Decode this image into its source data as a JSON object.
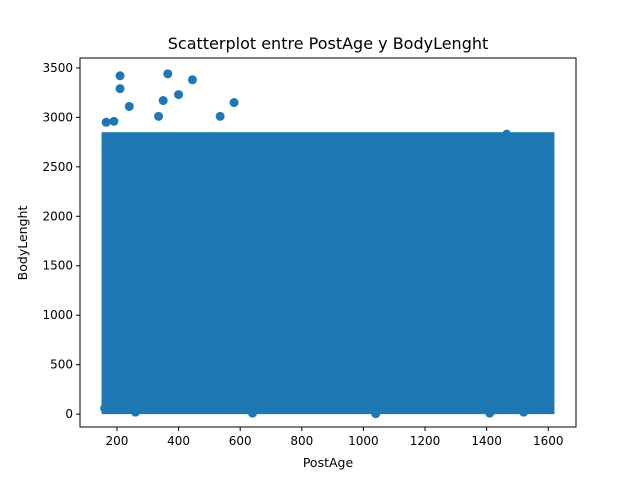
{
  "chart_data": {
    "type": "scatter",
    "title": "Scatterplot entre PostAge y BodyLenght",
    "xlabel": "PostAge",
    "ylabel": "BodyLenght",
    "xlim": [
      80,
      1690
    ],
    "ylim": [
      -130,
      3600
    ],
    "xticks": [
      200,
      400,
      600,
      800,
      1000,
      1200,
      1400,
      1600
    ],
    "yticks": [
      0,
      500,
      1000,
      1500,
      2000,
      2500,
      3000,
      3500
    ],
    "grid": false,
    "legend": "none",
    "marker_color": "#1f77b4",
    "dense_region": {
      "x_range": [
        150,
        1620
      ],
      "y_range": [
        0,
        2850
      ]
    },
    "series": [
      {
        "points": [
          [
            210,
            3420
          ],
          [
            365,
            3440
          ],
          [
            445,
            3380
          ],
          [
            210,
            3290
          ],
          [
            400,
            3230
          ],
          [
            350,
            3170
          ],
          [
            240,
            3110
          ],
          [
            580,
            3150
          ],
          [
            335,
            3010
          ],
          [
            535,
            3010
          ],
          [
            165,
            2950
          ],
          [
            190,
            2960
          ],
          [
            1465,
            2830
          ],
          [
            1555,
            2780
          ],
          [
            1510,
            2720
          ],
          [
            1575,
            2690
          ],
          [
            1530,
            2700
          ],
          [
            1480,
            2600
          ],
          [
            1440,
            2580
          ],
          [
            1560,
            2500
          ],
          [
            1500,
            2450
          ],
          [
            1580,
            2300
          ],
          [
            1570,
            2200
          ],
          [
            1600,
            2090
          ],
          [
            1585,
            1920
          ],
          [
            1590,
            1700
          ],
          [
            1605,
            1430
          ],
          [
            1600,
            1240
          ],
          [
            1598,
            980
          ],
          [
            1602,
            760
          ],
          [
            1600,
            450
          ],
          [
            1605,
            160
          ],
          [
            1595,
            60
          ],
          [
            1520,
            20
          ],
          [
            1410,
            10
          ],
          [
            1040,
            5
          ],
          [
            640,
            10
          ],
          [
            260,
            20
          ],
          [
            160,
            60
          ],
          [
            1280,
            2800
          ],
          [
            1350,
            2790
          ],
          [
            1300,
            2310
          ],
          [
            1420,
            2400
          ],
          [
            1470,
            2350
          ],
          [
            1500,
            2300
          ],
          [
            1530,
            2250
          ],
          [
            1520,
            1800
          ],
          [
            1540,
            1400
          ],
          [
            1545,
            1100
          ],
          [
            1550,
            800
          ]
        ]
      }
    ]
  }
}
